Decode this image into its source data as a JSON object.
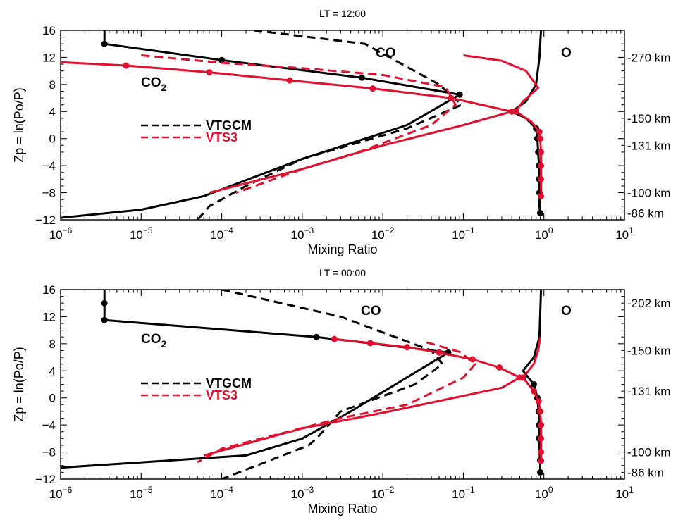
{
  "colors": {
    "vtgcm": "#000000",
    "vts3": "#e0102f"
  },
  "chart_data": [
    {
      "type": "line",
      "title": "LT = 12:00",
      "xlabel": "Mixing Ratio",
      "ylabel": "Zp = ln(Po/P)",
      "xscale": "log",
      "xlim": [
        1e-06,
        10
      ],
      "ylim": [
        -12,
        16
      ],
      "xticks": [
        "10",
        "10",
        "10",
        "10",
        "10",
        "10",
        "10",
        "10"
      ],
      "xtick_exps": [
        "−6",
        "−5",
        "−4",
        "−3",
        "−2",
        "−1",
        "0",
        "1"
      ],
      "yticks": [
        "−12",
        "−8",
        "−4",
        "0",
        "4",
        "8",
        "12",
        "16"
      ],
      "right_axis": [
        {
          "z": 12,
          "label": "270 km"
        },
        {
          "z": 3,
          "label": "150 km"
        },
        {
          "z": -1,
          "label": "131 km"
        },
        {
          "z": -8,
          "label": "100 km"
        },
        {
          "z": -11,
          "label": "86 km"
        }
      ],
      "species_labels": {
        "co2": "CO",
        "co2_sub": "2",
        "co": "CO",
        "o": "O"
      },
      "legend": [
        {
          "name": "VTGCM",
          "color": "#000000"
        },
        {
          "name": "VTS3",
          "color": "#e0102f"
        }
      ],
      "series": [
        {
          "model": "VTGCM",
          "species": "CO2",
          "style": "solid",
          "markers": true,
          "points": [
            [
              3.5e-06,
              16
            ],
            [
              3.5e-06,
              14
            ],
            [
              0.0001,
              11.6
            ],
            [
              0.0055,
              9
            ],
            [
              0.09,
              6.5
            ],
            [
              0.02,
              2
            ],
            [
              0.001,
              -3
            ],
            [
              6e-05,
              -8.5
            ],
            [
              1e-05,
              -10.5
            ],
            [
              1e-06,
              -11.7
            ]
          ],
          "marker_idx": [
            1,
            2,
            3,
            4
          ]
        },
        {
          "model": "VTGCM",
          "species": "CO",
          "style": "dashed",
          "markers": false,
          "points": [
            [
              0.00025,
              16
            ],
            [
              0.006,
              14
            ],
            [
              0.05,
              8
            ],
            [
              0.095,
              5
            ],
            [
              0.02,
              1.5
            ],
            [
              0.001,
              -3
            ],
            [
              0.0002,
              -7
            ],
            [
              7e-05,
              -10
            ],
            [
              5e-05,
              -12
            ]
          ]
        },
        {
          "model": "VTGCM",
          "species": "O",
          "style": "solid",
          "markers": true,
          "points": [
            [
              0.9,
              -11
            ],
            [
              0.88,
              -10
            ],
            [
              0.88,
              -8
            ],
            [
              0.87,
              -6
            ],
            [
              0.87,
              -4
            ],
            [
              0.85,
              -2
            ],
            [
              0.83,
              0
            ],
            [
              0.8,
              1.5
            ],
            [
              0.6,
              3
            ],
            [
              0.4,
              4
            ],
            [
              0.6,
              5.5
            ],
            [
              0.8,
              8
            ],
            [
              0.88,
              12
            ],
            [
              0.92,
              16
            ]
          ],
          "marker_idx": [
            0,
            2,
            3,
            4,
            5,
            6,
            7
          ]
        },
        {
          "model": "VTS3",
          "species": "CO2",
          "style": "solid",
          "markers": true,
          "points": [
            [
              1e-06,
              11.3
            ],
            [
              6.5e-06,
              10.8
            ],
            [
              7e-05,
              9.8
            ],
            [
              0.0007,
              8.6
            ],
            [
              0.0075,
              7.4
            ],
            [
              0.07,
              6
            ],
            [
              0.4,
              4
            ],
            [
              0.1,
              2
            ],
            [
              0.01,
              -1
            ],
            [
              0.001,
              -4.5
            ],
            [
              7e-05,
              -8
            ]
          ],
          "marker_idx": [
            1,
            2,
            3,
            4,
            5,
            6
          ]
        },
        {
          "model": "VTS3",
          "species": "CO",
          "style": "dashed",
          "markers": false,
          "points": [
            [
              1e-05,
              12.3
            ],
            [
              0.0001,
              11.2
            ],
            [
              0.001,
              10.4
            ],
            [
              0.01,
              9.4
            ],
            [
              0.06,
              7.6
            ],
            [
              0.08,
              5
            ],
            [
              0.04,
              2
            ],
            [
              0.005,
              -2
            ],
            [
              0.001,
              -4.5
            ],
            [
              0.00015,
              -8
            ]
          ]
        },
        {
          "model": "VTS3",
          "species": "O",
          "style": "solid",
          "markers": true,
          "points": [
            [
              0.92,
              -8.5
            ],
            [
              0.92,
              -6
            ],
            [
              0.92,
              -4
            ],
            [
              0.92,
              -2
            ],
            [
              0.9,
              0
            ],
            [
              0.88,
              1
            ],
            [
              0.7,
              2.5
            ],
            [
              0.45,
              4
            ],
            [
              0.55,
              5.5
            ],
            [
              0.85,
              7.5
            ],
            [
              0.6,
              10
            ],
            [
              0.3,
              11.5
            ],
            [
              0.1,
              12.3
            ]
          ],
          "marker_idx": [
            0,
            1,
            2,
            3,
            4,
            5,
            7
          ]
        }
      ]
    },
    {
      "type": "line",
      "title": "LT = 00:00",
      "xlabel": "Mixing Ratio",
      "ylabel": "Zp = ln(Po/P)",
      "xscale": "log",
      "xlim": [
        1e-06,
        10
      ],
      "ylim": [
        -12,
        16
      ],
      "xticks": [
        "10",
        "10",
        "10",
        "10",
        "10",
        "10",
        "10",
        "10"
      ],
      "xtick_exps": [
        "−6",
        "−5",
        "−4",
        "−3",
        "−2",
        "−1",
        "0",
        "1"
      ],
      "yticks": [
        "−12",
        "−8",
        "−4",
        "0",
        "4",
        "8",
        "12",
        "16"
      ],
      "right_axis": [
        {
          "z": 14,
          "label": "202 km"
        },
        {
          "z": 7,
          "label": "150 km"
        },
        {
          "z": 1,
          "label": "131 km"
        },
        {
          "z": -8,
          "label": "100 km"
        },
        {
          "z": -11,
          "label": "86 km"
        }
      ],
      "species_labels": {
        "co2": "CO",
        "co2_sub": "2",
        "co": "CO",
        "o": "O"
      },
      "legend": [
        {
          "name": "VTGCM",
          "color": "#000000"
        },
        {
          "name": "VTS3",
          "color": "#e0102f"
        }
      ],
      "series": [
        {
          "model": "VTGCM",
          "species": "CO2",
          "style": "solid",
          "markers": true,
          "points": [
            [
              3.5e-06,
              16
            ],
            [
              3.5e-06,
              14
            ],
            [
              3.5e-06,
              11.5
            ],
            [
              0.0015,
              9
            ],
            [
              0.065,
              6.7
            ],
            [
              0.004,
              -2
            ],
            [
              0.001,
              -6
            ],
            [
              0.0002,
              -8.5
            ],
            [
              1e-06,
              -10.3
            ]
          ],
          "marker_idx": [
            1,
            2,
            3,
            4
          ]
        },
        {
          "model": "VTGCM",
          "species": "CO",
          "style": "dashed",
          "markers": false,
          "points": [
            [
              0.0001,
              16
            ],
            [
              0.003,
              12
            ],
            [
              0.04,
              7
            ],
            [
              0.055,
              5
            ],
            [
              0.025,
              2
            ],
            [
              0.003,
              -2
            ],
            [
              0.0015,
              -6
            ],
            [
              0.0012,
              -7
            ],
            [
              0.0001,
              -12
            ]
          ]
        },
        {
          "model": "VTGCM",
          "species": "O",
          "style": "solid",
          "markers": true,
          "points": [
            [
              0.9,
              -11
            ],
            [
              0.9,
              -9.2
            ],
            [
              0.88,
              -8
            ],
            [
              0.87,
              -6
            ],
            [
              0.87,
              -4
            ],
            [
              0.86,
              -2
            ],
            [
              0.83,
              0
            ],
            [
              0.75,
              2
            ],
            [
              0.55,
              4
            ],
            [
              0.75,
              6
            ],
            [
              0.88,
              9
            ],
            [
              0.92,
              16
            ]
          ],
          "marker_idx": [
            0,
            1,
            3,
            4,
            5,
            6,
            7
          ]
        },
        {
          "model": "VTS3",
          "species": "CO2",
          "style": "solid",
          "markers": true,
          "points": [
            [
              0.0025,
              8.7
            ],
            [
              0.007,
              8.1
            ],
            [
              0.02,
              7.5
            ],
            [
              0.05,
              6.7
            ],
            [
              0.13,
              5.7
            ],
            [
              0.28,
              4.5
            ],
            [
              0.5,
              3
            ],
            [
              0.3,
              1.5
            ],
            [
              0.1,
              0.3
            ],
            [
              0.01,
              -2.2
            ],
            [
              0.001,
              -4.5
            ],
            [
              6e-05,
              -8.5
            ]
          ],
          "marker_idx": [
            0,
            1,
            2,
            3,
            4,
            5,
            6
          ]
        },
        {
          "model": "VTS3",
          "species": "CO",
          "style": "dashed",
          "markers": false,
          "points": [
            [
              0.035,
              8.2
            ],
            [
              0.09,
              6.8
            ],
            [
              0.14,
              5
            ],
            [
              0.1,
              3
            ],
            [
              0.02,
              -1
            ],
            [
              0.003,
              -3
            ],
            [
              0.0001,
              -7.5
            ],
            [
              5e-05,
              -9.5
            ]
          ],
          "dashdot_start": true
        },
        {
          "model": "VTS3",
          "species": "O",
          "style": "solid",
          "markers": true,
          "points": [
            [
              0.92,
              -9.3
            ],
            [
              0.92,
              -8
            ],
            [
              0.92,
              -6
            ],
            [
              0.92,
              -4
            ],
            [
              0.9,
              -2
            ],
            [
              0.86,
              -0.5
            ],
            [
              0.75,
              1
            ],
            [
              0.55,
              3
            ],
            [
              0.75,
              5
            ],
            [
              0.85,
              7
            ],
            [
              0.9,
              9
            ]
          ],
          "marker_idx": [
            0,
            1,
            2,
            3,
            4,
            5,
            6,
            7
          ]
        }
      ]
    }
  ]
}
